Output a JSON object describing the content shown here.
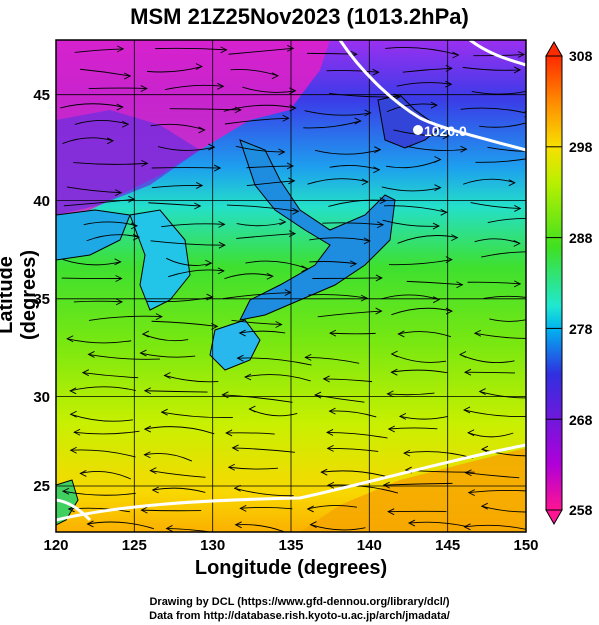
{
  "title": "MSM 21Z25Nov2023 (1013.2hPa)",
  "axes": {
    "xlabel": "Longitude (degrees)",
    "ylabel": "Latitude  (degrees)",
    "xlim": [
      120,
      150
    ],
    "ylim": [
      22.4,
      47.6
    ],
    "xticks": [
      "120",
      "125",
      "130",
      "135",
      "140",
      "145",
      "150"
    ],
    "yticks": [
      "25",
      "30",
      "35",
      "40",
      "45"
    ]
  },
  "colorbar": {
    "range": [
      258,
      308
    ],
    "ticks": [
      "308",
      "298",
      "288",
      "278",
      "268",
      "258"
    ],
    "colors": [
      "#ff1493",
      "#b000d8",
      "#3030e0",
      "#00b4f0",
      "#20e8d0",
      "#40e020",
      "#b8f000",
      "#f8e000",
      "#ff8a00",
      "#ff2a00"
    ]
  },
  "isobar_label": "1020.0",
  "credits": {
    "line1": "Drawing by DCL (https://www.gfd-dennou.org/library/dcl/)",
    "line2": "Data from http://database.rish.kyoto-u.ac.jp/arch/jmadata/"
  }
}
